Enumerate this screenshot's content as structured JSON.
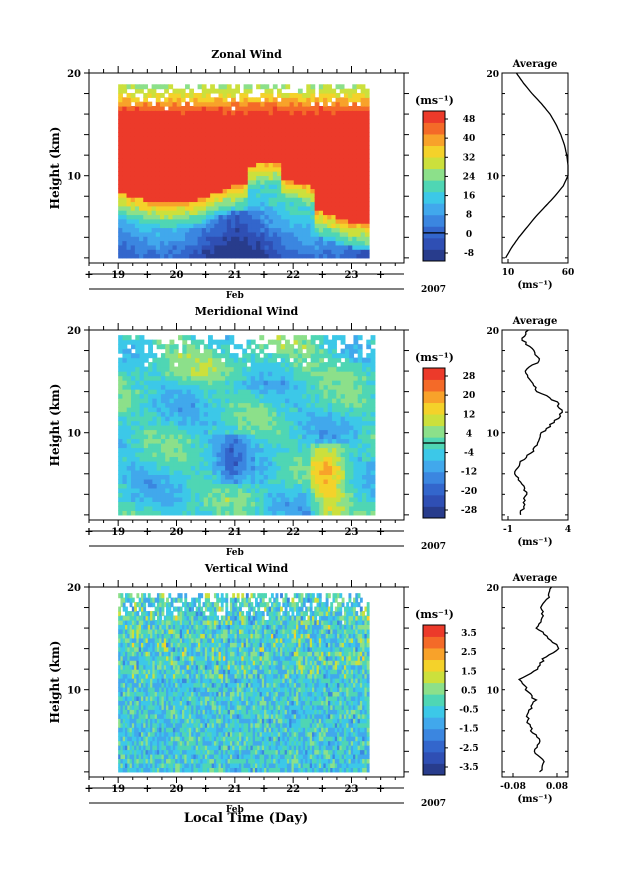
{
  "figure": {
    "xlabel": "Local Time (Day)",
    "month_label": "Feb",
    "year_label": "2007",
    "unit_label": "(ms⁻¹)",
    "average_title": "Average",
    "ylabel": "Height (km)"
  },
  "chart_data": [
    {
      "id": "zonal",
      "type": "heatmap",
      "title": "Zonal Wind",
      "ylabel": "Height (km)",
      "xlabel": "Feb",
      "year": "2007",
      "x_ticks": [
        "19",
        "20",
        "21",
        "22",
        "23"
      ],
      "y_ticks": [
        10,
        20
      ],
      "xlim": [
        18.5,
        23.9
      ],
      "ylim": [
        1.5,
        20
      ],
      "data_xlim": [
        19.0,
        23.3
      ],
      "data_ylim": [
        2,
        18.9
      ],
      "colorbar": {
        "unit": "(ms⁻¹)",
        "ticks": [
          "48",
          "40",
          "32",
          "24",
          "16",
          "8",
          "0",
          "-8"
        ],
        "range": [
          -12,
          52
        ],
        "zero_line": 0,
        "colors": [
          "#283c8c",
          "#2f4fb4",
          "#3366cc",
          "#3b86e0",
          "#41a8ec",
          "#3cc8e8",
          "#4fd6b4",
          "#8ce08a",
          "#cce03c",
          "#f4d22a",
          "#f8a22a",
          "#f46a28",
          "#ec3a2a"
        ]
      },
      "average": {
        "title": "Average",
        "unit": "(ms⁻¹)",
        "xlim": [
          5,
          60
        ],
        "x_ticks": [
          "10",
          "60"
        ],
        "heights": [
          2,
          3,
          4,
          5,
          6,
          7,
          8,
          9,
          10,
          11,
          12,
          13,
          14,
          15,
          16,
          17,
          18,
          19,
          20
        ],
        "values": [
          8,
          13,
          19,
          26,
          33,
          41,
          49,
          56,
          60,
          60,
          59,
          57,
          54,
          50,
          45,
          38,
          30,
          23,
          17
        ]
      }
    },
    {
      "id": "meridional",
      "type": "heatmap",
      "title": "Meridional Wind",
      "ylabel": "Height (km)",
      "xlabel": "Feb",
      "year": "2007",
      "x_ticks": [
        "19",
        "20",
        "21",
        "22",
        "23"
      ],
      "y_ticks": [
        10,
        20
      ],
      "xlim": [
        18.5,
        23.9
      ],
      "ylim": [
        1.5,
        20
      ],
      "data_xlim": [
        19.0,
        23.4
      ],
      "data_ylim": [
        2,
        19.5
      ],
      "colorbar": {
        "unit": "(ms⁻¹)",
        "ticks": [
          "28",
          "20",
          "12",
          "4",
          "-4",
          "-12",
          "-20",
          "-28"
        ],
        "range": [
          -32,
          32
        ],
        "zero_line": 0,
        "colors": [
          "#283c8c",
          "#2f4fb4",
          "#3366cc",
          "#3b86e0",
          "#41a8ec",
          "#3cc8e8",
          "#4fd6b4",
          "#8ce08a",
          "#cce03c",
          "#f4d22a",
          "#f8a22a",
          "#f46a28",
          "#ec3a2a"
        ]
      },
      "average": {
        "title": "Average",
        "unit": "(ms⁻¹)",
        "xlim": [
          -1.5,
          4
        ],
        "x_ticks": [
          "-1",
          "4"
        ],
        "heights": [
          2,
          3,
          4,
          5,
          6,
          7,
          8,
          9,
          10,
          11,
          12,
          13,
          14,
          15,
          16,
          17,
          18,
          19,
          20
        ],
        "values": [
          0.1,
          0.3,
          0.5,
          0.2,
          -0.4,
          -0.1,
          0.9,
          1.5,
          1.8,
          2.8,
          3.6,
          3.0,
          1.5,
          0.9,
          0.4,
          1.6,
          1.2,
          0.2,
          0.7
        ]
      }
    },
    {
      "id": "vertical",
      "type": "heatmap",
      "title": "Vertical Wind",
      "ylabel": "Height (km)",
      "xlabel": "Feb",
      "year": "2007",
      "x_ticks": [
        "19",
        "20",
        "21",
        "22",
        "23"
      ],
      "y_ticks": [
        10,
        20
      ],
      "xlim": [
        18.5,
        23.9
      ],
      "ylim": [
        1.5,
        20
      ],
      "data_xlim": [
        19.0,
        23.3
      ],
      "data_ylim": [
        2,
        19.4
      ],
      "colorbar": {
        "unit": "(ms⁻¹)",
        "ticks": [
          "3.5",
          "2.5",
          "1.5",
          "0.5",
          "-0.5",
          "-1.5",
          "-2.5",
          "-3.5"
        ],
        "range": [
          -4,
          4
        ],
        "zero_line": null,
        "colors": [
          "#283c8c",
          "#2f4fb4",
          "#3366cc",
          "#3b86e0",
          "#41a8ec",
          "#3cc8e8",
          "#4fd6b4",
          "#8ce08a",
          "#cce03c",
          "#f4d22a",
          "#f8a22a",
          "#f46a28",
          "#ec3a2a"
        ]
      },
      "average": {
        "title": "Average",
        "unit": "(ms⁻¹)",
        "xlim": [
          -0.12,
          0.12
        ],
        "x_ticks": [
          "-0.08",
          "0.08"
        ],
        "heights": [
          2,
          3,
          4,
          5,
          6,
          7,
          8,
          9,
          10,
          11,
          12,
          13,
          14,
          15,
          16,
          17,
          18,
          19,
          20
        ],
        "values": [
          0.02,
          0.03,
          0.0,
          0.02,
          -0.01,
          -0.03,
          -0.02,
          0.0,
          -0.03,
          -0.06,
          0.01,
          0.03,
          0.09,
          0.05,
          0.01,
          0.03,
          0.02,
          0.05,
          0.06
        ]
      }
    }
  ]
}
